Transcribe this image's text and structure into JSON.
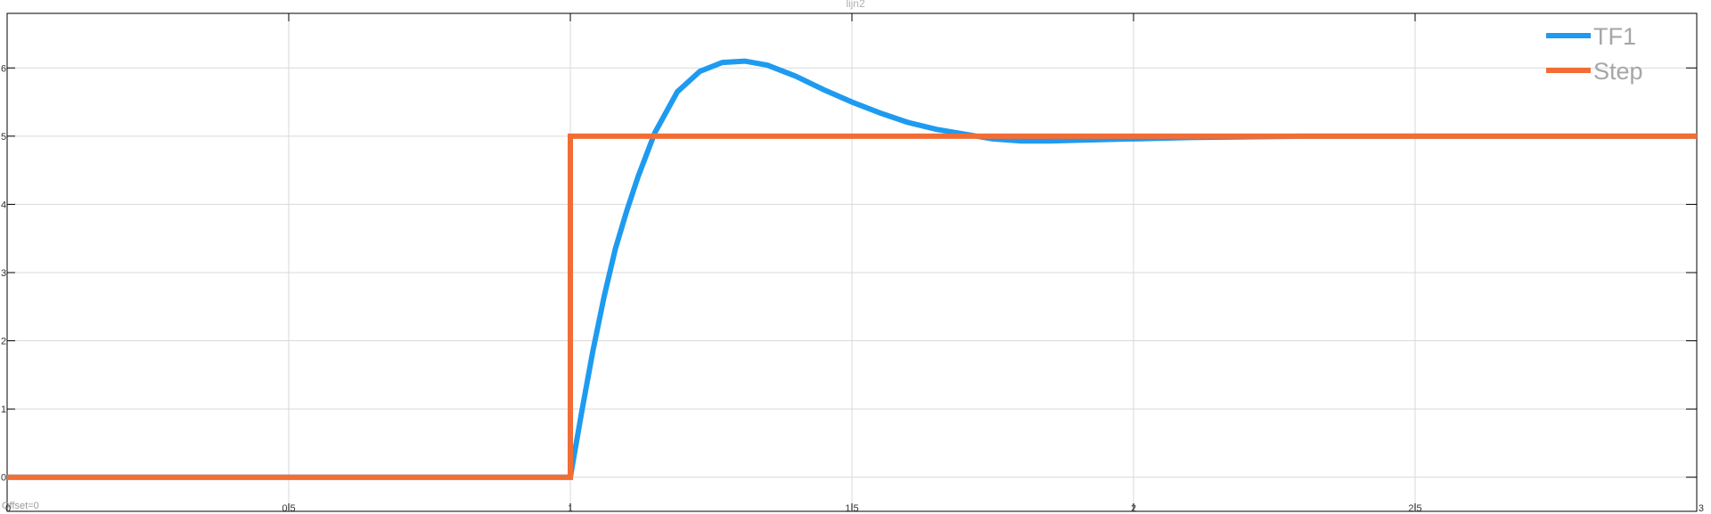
{
  "chart_data": {
    "type": "line",
    "title": "lijn2",
    "xlabel": "",
    "ylabel": "",
    "xlim": [
      0,
      3
    ],
    "ylim": [
      -0.5,
      6.8
    ],
    "grid": true,
    "legend_position": "top-right",
    "x_ticks": [
      {
        "value": 0,
        "label": "0"
      },
      {
        "value": 0.5,
        "label": "0.5"
      },
      {
        "value": 1,
        "label": "1"
      },
      {
        "value": 1.5,
        "label": "1.5"
      },
      {
        "value": 2,
        "label": "2"
      },
      {
        "value": 2.5,
        "label": "2.5"
      },
      {
        "value": 3,
        "label": "3"
      }
    ],
    "y_ticks": [
      {
        "value": 0,
        "label": "0"
      },
      {
        "value": 1,
        "label": "1"
      },
      {
        "value": 2,
        "label": "2"
      },
      {
        "value": 3,
        "label": "3"
      },
      {
        "value": 4,
        "label": "4"
      },
      {
        "value": 5,
        "label": "5"
      },
      {
        "value": 6,
        "label": "6"
      }
    ],
    "series": [
      {
        "name": "TF1",
        "color": "#1e9bf0",
        "points": [
          [
            0,
            0
          ],
          [
            1.0,
            0
          ],
          [
            1.02,
            0.95
          ],
          [
            1.04,
            1.85
          ],
          [
            1.06,
            2.65
          ],
          [
            1.08,
            3.35
          ],
          [
            1.1,
            3.9
          ],
          [
            1.12,
            4.4
          ],
          [
            1.15,
            5.05
          ],
          [
            1.19,
            5.65
          ],
          [
            1.23,
            5.95
          ],
          [
            1.27,
            6.08
          ],
          [
            1.31,
            6.1
          ],
          [
            1.35,
            6.04
          ],
          [
            1.4,
            5.88
          ],
          [
            1.45,
            5.68
          ],
          [
            1.5,
            5.5
          ],
          [
            1.55,
            5.34
          ],
          [
            1.6,
            5.2
          ],
          [
            1.65,
            5.1
          ],
          [
            1.7,
            5.03
          ],
          [
            1.75,
            4.96
          ],
          [
            1.8,
            4.93
          ],
          [
            1.85,
            4.93
          ],
          [
            1.95,
            4.95
          ],
          [
            2.1,
            4.98
          ],
          [
            2.3,
            5.0
          ],
          [
            2.6,
            5.0
          ],
          [
            3.0,
            5.0
          ]
        ]
      },
      {
        "name": "Step",
        "color": "#f26d35",
        "points": [
          [
            0,
            0
          ],
          [
            1,
            0
          ],
          [
            1,
            5
          ],
          [
            3,
            5
          ]
        ]
      }
    ]
  },
  "status": {
    "offset_text": "Offset=0"
  },
  "colors": {
    "background": "#ffffff",
    "axes": "#000000",
    "grid": "#d9d9d9",
    "title": "#b0b0b0",
    "legend_text": "#a6a6a6"
  }
}
